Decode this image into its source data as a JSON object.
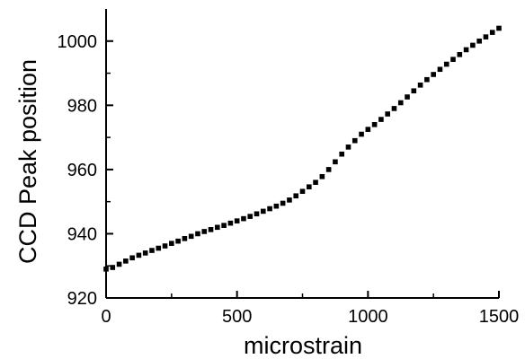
{
  "chart_data": {
    "type": "scatter",
    "title": "",
    "xlabel": "microstrain",
    "ylabel": "CCD Peak position",
    "xlim": [
      0,
      1500
    ],
    "ylim": [
      920,
      1010
    ],
    "xticks": [
      0,
      500,
      1000,
      1500
    ],
    "yticks": [
      920,
      940,
      960,
      980,
      1000
    ],
    "xtick_labels": [
      "0",
      "500",
      "1000",
      "1500"
    ],
    "ytick_labels": [
      "920",
      "940",
      "960",
      "980",
      "1000"
    ],
    "grid": false,
    "legend": "none",
    "marker": "square",
    "color": "#000000",
    "series": [
      {
        "x": [
          0,
          25,
          50,
          75,
          100,
          125,
          150,
          175,
          200,
          225,
          250,
          275,
          300,
          325,
          350,
          375,
          400,
          425,
          450,
          475,
          500,
          525,
          550,
          575,
          600,
          625,
          650,
          675,
          700,
          725,
          750,
          775,
          800,
          825,
          850,
          875,
          900,
          925,
          950,
          975,
          1000,
          1025,
          1050,
          1075,
          1100,
          1125,
          1150,
          1175,
          1200,
          1225,
          1250,
          1275,
          1300,
          1325,
          1350,
          1375,
          1400,
          1425,
          1450,
          1475,
          1500
        ],
        "y": [
          929.0,
          929.5,
          930.5,
          931.5,
          932.5,
          933.3,
          934.0,
          934.8,
          935.5,
          936.2,
          937.0,
          937.7,
          938.5,
          939.2,
          940.0,
          940.7,
          941.3,
          942.0,
          942.6,
          943.3,
          944.0,
          944.7,
          945.4,
          946.2,
          947.0,
          947.8,
          948.6,
          949.5,
          950.5,
          951.8,
          953.2,
          954.6,
          956.0,
          957.8,
          960.0,
          962.4,
          964.8,
          967.0,
          969.0,
          971.0,
          972.5,
          974.0,
          975.6,
          977.3,
          979.0,
          980.8,
          982.6,
          984.5,
          986.3,
          988.0,
          989.6,
          991.2,
          992.8,
          994.3,
          995.8,
          997.3,
          998.7,
          1000.0,
          1001.3,
          1002.7,
          1004.0
        ]
      }
    ]
  }
}
